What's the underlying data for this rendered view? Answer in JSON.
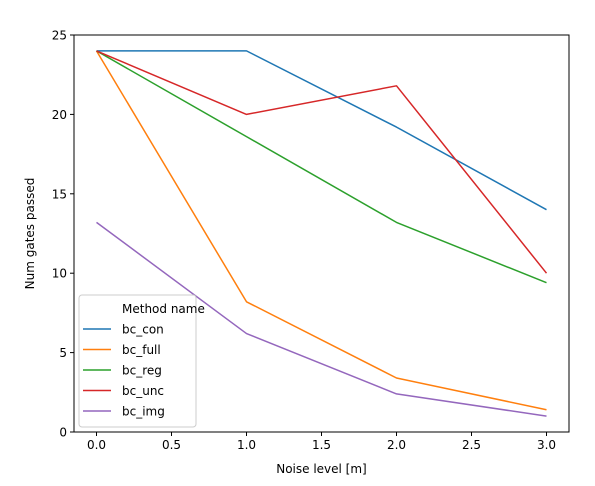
{
  "chart_data": {
    "type": "line",
    "title": "",
    "xlabel": "Noise level [m]",
    "ylabel": "Num gates passed",
    "xlim": [
      -0.15,
      3.15
    ],
    "ylim": [
      0,
      25
    ],
    "xticks": [
      0.0,
      0.5,
      1.0,
      1.5,
      2.0,
      2.5,
      3.0
    ],
    "xtick_labels": [
      "0.0",
      "0.5",
      "1.0",
      "1.5",
      "2.0",
      "2.5",
      "3.0"
    ],
    "yticks": [
      0,
      5,
      10,
      15,
      20,
      25
    ],
    "ytick_labels": [
      "0",
      "5",
      "10",
      "15",
      "20",
      "25"
    ],
    "x": [
      0,
      1,
      2,
      3
    ],
    "grid": false,
    "legend": {
      "title": "Method name",
      "location": "lower-left"
    },
    "series": [
      {
        "name": "bc_con",
        "color": "#1f77b4",
        "values": [
          24,
          24,
          19.2,
          14
        ]
      },
      {
        "name": "bc_full",
        "color": "#ff7f0e",
        "values": [
          24,
          8.2,
          3.4,
          1.4
        ]
      },
      {
        "name": "bc_reg",
        "color": "#2ca02c",
        "values": [
          24,
          18.6,
          13.2,
          9.4
        ]
      },
      {
        "name": "bc_unc",
        "color": "#d62728",
        "values": [
          24,
          20,
          21.8,
          10
        ]
      },
      {
        "name": "bc_img",
        "color": "#9467bd",
        "values": [
          13.2,
          6.2,
          2.4,
          1.0
        ]
      }
    ]
  }
}
